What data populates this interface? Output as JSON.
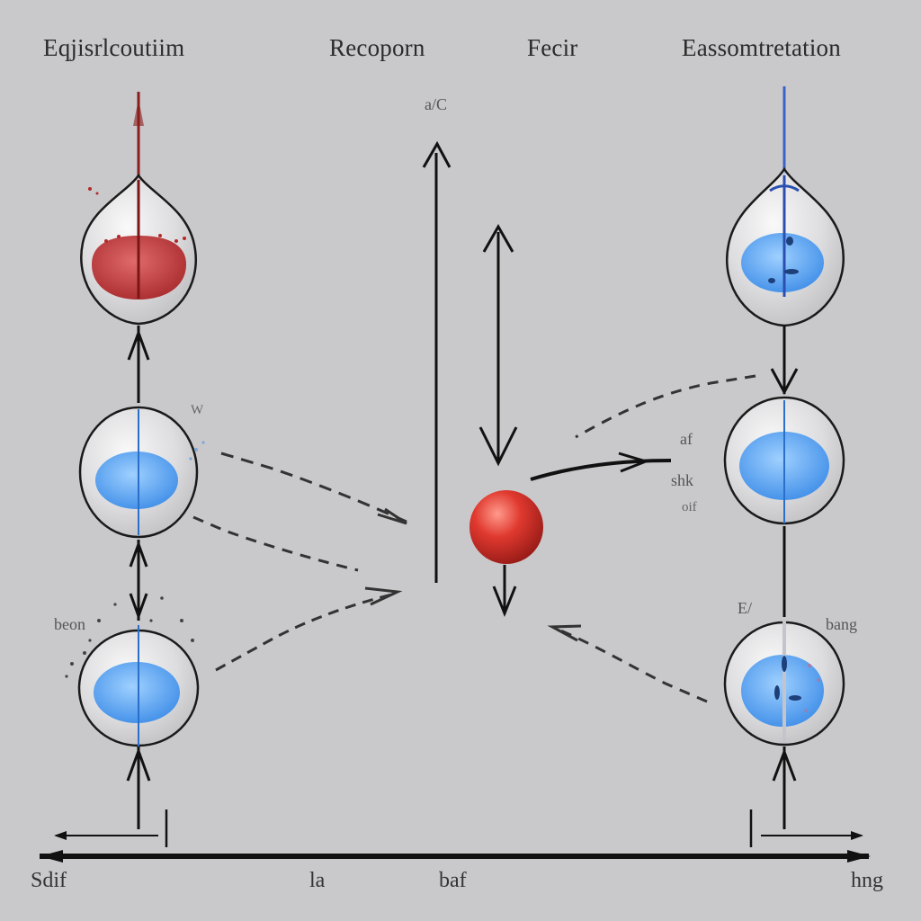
{
  "headers": {
    "left": "Eqjisrlcoutiim",
    "center_left": "Recoporn",
    "center_right": "Fecir",
    "right": "Eassomtretation"
  },
  "annotations": {
    "top_center": "a/C",
    "left_mid": "W",
    "left_lower": "beon",
    "right_a": "af",
    "right_b": "shk",
    "right_c": "oif",
    "right_lower_left": "E/",
    "right_lower_right": "bang"
  },
  "bottom_labels": {
    "left": "Sdif",
    "center_left": "la",
    "center_right": "baf",
    "right": "hng"
  },
  "colors": {
    "background": "#c9c9cb",
    "red_liquid": "#c0393b",
    "blue_liquid": "#5aa7f0",
    "arrow": "#1c1c1c",
    "red_ball": "#d8302a"
  }
}
